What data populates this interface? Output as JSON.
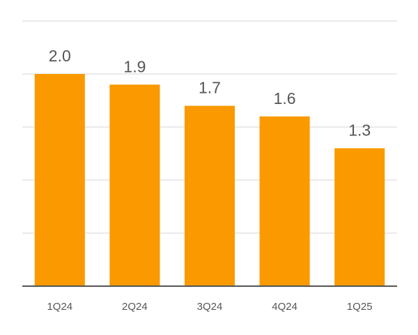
{
  "chart_data": {
    "type": "bar",
    "categories": [
      "1Q24",
      "2Q24",
      "3Q24",
      "4Q24",
      "1Q25"
    ],
    "values": [
      2.0,
      1.9,
      1.7,
      1.6,
      1.3
    ],
    "value_labels": [
      "2.0",
      "1.9",
      "1.7",
      "1.6",
      "1.3"
    ],
    "color": "#fa9a00",
    "ylim": [
      0,
      2.5
    ],
    "yticks": [
      0,
      0.5,
      1,
      1.5,
      2,
      2.5
    ],
    "show_ytick_labels": false,
    "grid": true
  }
}
